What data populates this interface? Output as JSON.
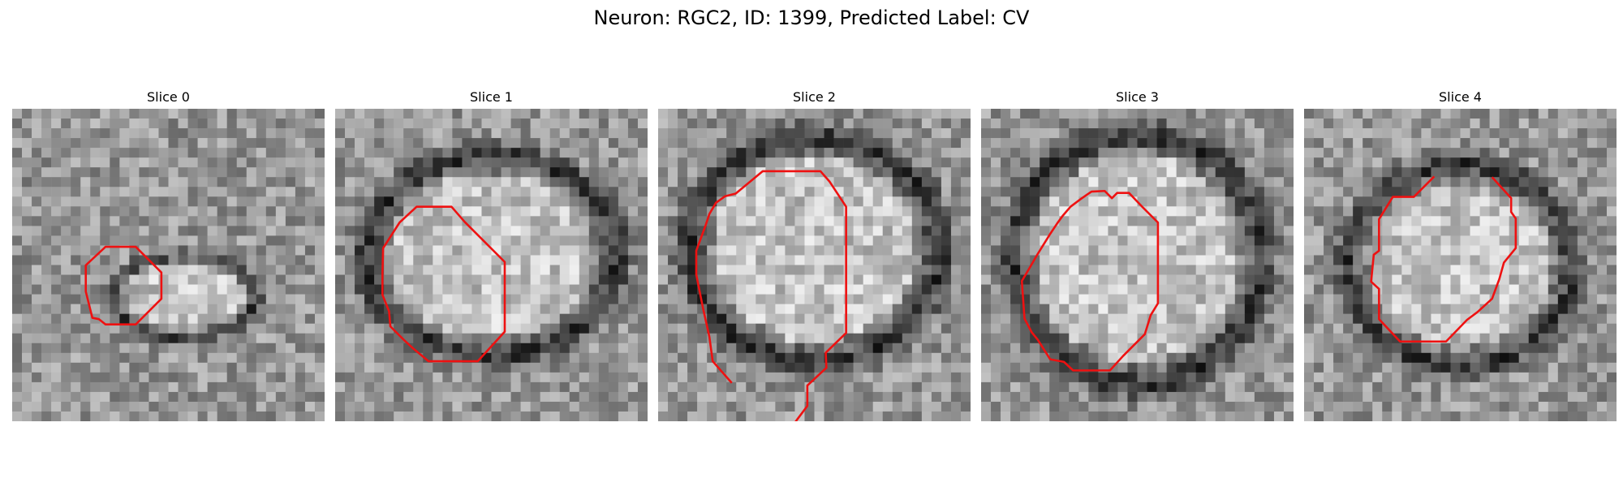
{
  "figure": {
    "title": "Neuron: RGC2, ID: 1399, Predicted Label: CV"
  },
  "colors": {
    "contour": "#ee1111",
    "background": "#ffffff"
  },
  "panels": [
    {
      "title": "Slice 0"
    },
    {
      "title": "Slice 1"
    },
    {
      "title": "Slice 2"
    },
    {
      "title": "Slice 3"
    },
    {
      "title": "Slice 4"
    }
  ]
}
